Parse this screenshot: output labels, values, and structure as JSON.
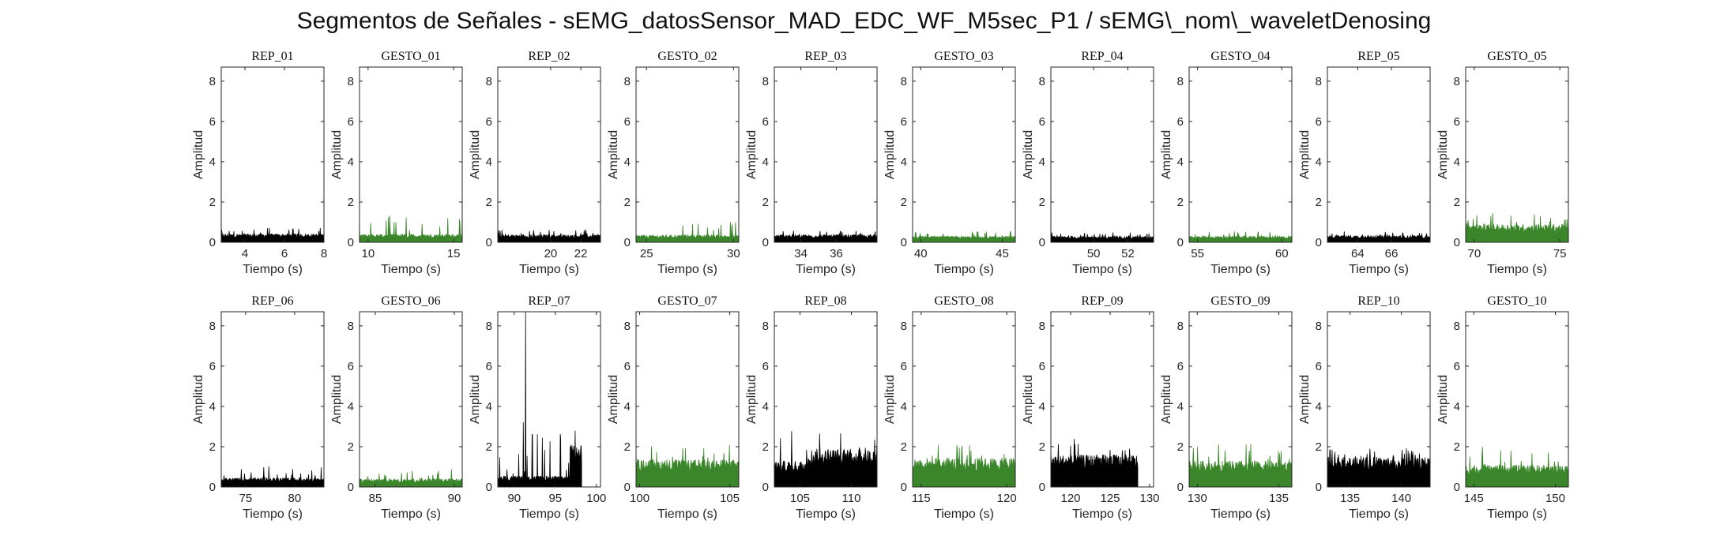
{
  "title": "Segmentos de Señales - sEMG_datosSensor_MAD_EDC_WF_M5sec_P1 / sEMG\\_nom\\_waveletDenosing",
  "colors": {
    "rep": "#000000",
    "gesto": "#3b862a",
    "axis": "#262626"
  },
  "chart_data": [
    {
      "type": "area",
      "title": "REP_01",
      "color": "rep",
      "xlabel": "Tiempo (s)",
      "ylabel": "Amplitud",
      "xlim": [
        2.8,
        8
      ],
      "ylim": [
        0,
        8.7
      ],
      "xticks": [
        4,
        6,
        8
      ],
      "yticks": [
        0,
        2,
        4,
        6,
        8
      ],
      "x_range": [
        2.8,
        8
      ],
      "level": 0.42,
      "peak": 0.72
    },
    {
      "type": "area",
      "title": "GESTO_01",
      "color": "gesto",
      "xlabel": "Tiempo (s)",
      "ylabel": "Amplitud",
      "xlim": [
        9.5,
        15.5
      ],
      "ylim": [
        0,
        8.7
      ],
      "xticks": [
        10,
        15
      ],
      "yticks": [
        0,
        2,
        4,
        6,
        8
      ],
      "x_range": [
        9.5,
        15.5
      ],
      "level": 0.4,
      "peak": 1.35
    },
    {
      "type": "area",
      "title": "REP_02",
      "color": "rep",
      "xlabel": "Tiempo (s)",
      "ylabel": "Amplitud",
      "xlim": [
        16.5,
        23.3
      ],
      "ylim": [
        0,
        8.7
      ],
      "xticks": [
        20,
        22
      ],
      "yticks": [
        0,
        2,
        4,
        6,
        8
      ],
      "x_range": [
        16.5,
        23.3
      ],
      "level": 0.38,
      "peak": 0.62
    },
    {
      "type": "area",
      "title": "GESTO_02",
      "color": "gesto",
      "xlabel": "Tiempo (s)",
      "ylabel": "Amplitud",
      "xlim": [
        24.4,
        30.3
      ],
      "ylim": [
        0,
        8.7
      ],
      "xticks": [
        25,
        30
      ],
      "yticks": [
        0,
        2,
        4,
        6,
        8
      ],
      "x_range": [
        24.4,
        30.3
      ],
      "level": 0.36,
      "peak": 1.05
    },
    {
      "type": "area",
      "title": "REP_03",
      "color": "rep",
      "xlabel": "Tiempo (s)",
      "ylabel": "Amplitud",
      "xlim": [
        32.5,
        38.3
      ],
      "ylim": [
        0,
        8.7
      ],
      "xticks": [
        34,
        36
      ],
      "yticks": [
        0,
        2,
        4,
        6,
        8
      ],
      "x_range": [
        32.5,
        38.3
      ],
      "level": 0.38,
      "peak": 0.6
    },
    {
      "type": "area",
      "title": "GESTO_03",
      "color": "gesto",
      "xlabel": "Tiempo (s)",
      "ylabel": "Amplitud",
      "xlim": [
        39.5,
        45.8
      ],
      "ylim": [
        0,
        8.7
      ],
      "xticks": [
        40,
        45
      ],
      "yticks": [
        0,
        2,
        4,
        6,
        8
      ],
      "x_range": [
        39.5,
        45.8
      ],
      "level": 0.3,
      "peak": 0.55
    },
    {
      "type": "area",
      "title": "REP_04",
      "color": "rep",
      "xlabel": "Tiempo (s)",
      "ylabel": "Amplitud",
      "xlim": [
        47.5,
        53.5
      ],
      "ylim": [
        0,
        8.7
      ],
      "xticks": [
        50,
        52
      ],
      "yticks": [
        0,
        2,
        4,
        6,
        8
      ],
      "x_range": [
        47.5,
        53.5
      ],
      "level": 0.3,
      "peak": 0.52
    },
    {
      "type": "area",
      "title": "GESTO_04",
      "color": "gesto",
      "xlabel": "Tiempo (s)",
      "ylabel": "Amplitud",
      "xlim": [
        54.5,
        60.6
      ],
      "ylim": [
        0,
        8.7
      ],
      "xticks": [
        55,
        60
      ],
      "yticks": [
        0,
        2,
        4,
        6,
        8
      ],
      "x_range": [
        54.5,
        60.6
      ],
      "level": 0.3,
      "peak": 0.55
    },
    {
      "type": "area",
      "title": "REP_05",
      "color": "rep",
      "xlabel": "Tiempo (s)",
      "ylabel": "Amplitud",
      "xlim": [
        62.2,
        68.3
      ],
      "ylim": [
        0,
        8.7
      ],
      "xticks": [
        64,
        66
      ],
      "yticks": [
        0,
        2,
        4,
        6,
        8
      ],
      "x_range": [
        62.2,
        68.3
      ],
      "level": 0.34,
      "peak": 0.55
    },
    {
      "type": "area",
      "title": "GESTO_05",
      "color": "gesto",
      "xlabel": "Tiempo (s)",
      "ylabel": "Amplitud",
      "xlim": [
        69.5,
        75.5
      ],
      "ylim": [
        0,
        8.7
      ],
      "xticks": [
        70,
        75
      ],
      "yticks": [
        0,
        2,
        4,
        6,
        8
      ],
      "x_range": [
        69.5,
        75.5
      ],
      "level": 0.9,
      "peak": 1.45
    },
    {
      "type": "area",
      "title": "REP_06",
      "color": "rep",
      "xlabel": "Tiempo (s)",
      "ylabel": "Amplitud",
      "xlim": [
        72.5,
        83
      ],
      "ylim": [
        0,
        8.7
      ],
      "xticks": [
        75,
        80
      ],
      "yticks": [
        0,
        2,
        4,
        6,
        8
      ],
      "x_range": [
        72.5,
        83
      ],
      "level": 0.45,
      "peak": 1.05
    },
    {
      "type": "area",
      "title": "GESTO_06",
      "color": "gesto",
      "xlabel": "Tiempo (s)",
      "ylabel": "Amplitud",
      "xlim": [
        84,
        90.5
      ],
      "ylim": [
        0,
        8.7
      ],
      "xticks": [
        85,
        90
      ],
      "yticks": [
        0,
        2,
        4,
        6,
        8
      ],
      "x_range": [
        84,
        90.5
      ],
      "level": 0.4,
      "peak": 0.9
    },
    {
      "type": "area",
      "title": "REP_07",
      "color": "rep",
      "xlabel": "Tiempo (s)",
      "ylabel": "Amplitud",
      "xlim": [
        88,
        100.5
      ],
      "ylim": [
        0,
        8.7
      ],
      "xticks": [
        90,
        95,
        100
      ],
      "yticks": [
        0,
        2,
        4,
        6,
        8
      ],
      "x_range": [
        88,
        98.2
      ],
      "level": 0.55,
      "peak": 2.8,
      "spikes": [
        [
          91.4,
          8.7
        ],
        [
          91.1,
          3.2
        ],
        [
          92.2,
          2.6
        ],
        [
          97.4,
          2.8
        ]
      ],
      "plateau": [
        96.8,
        98.2,
        2.1
      ]
    },
    {
      "type": "area",
      "title": "GESTO_07",
      "color": "gesto",
      "xlabel": "Tiempo (s)",
      "ylabel": "Amplitud",
      "xlim": [
        99.8,
        105.5
      ],
      "ylim": [
        0,
        8.7
      ],
      "xticks": [
        100,
        105
      ],
      "yticks": [
        0,
        2,
        4,
        6,
        8
      ],
      "x_range": [
        99.8,
        105.5
      ],
      "level": 1.35,
      "peak": 2.2
    },
    {
      "type": "area",
      "title": "REP_08",
      "color": "rep",
      "xlabel": "Tiempo (s)",
      "ylabel": "Amplitud",
      "xlim": [
        102.5,
        112.5
      ],
      "ylim": [
        0,
        8.7
      ],
      "xticks": [
        105,
        110
      ],
      "yticks": [
        0,
        2,
        4,
        6,
        8
      ],
      "x_range": [
        102.5,
        112.5
      ],
      "level": 1.9,
      "peak": 2.8,
      "step": [
        102.5,
        105.6,
        1.3
      ]
    },
    {
      "type": "area",
      "title": "GESTO_08",
      "color": "gesto",
      "xlabel": "Tiempo (s)",
      "ylabel": "Amplitud",
      "xlim": [
        114.5,
        120.5
      ],
      "ylim": [
        0,
        8.7
      ],
      "xticks": [
        115,
        120
      ],
      "yticks": [
        0,
        2,
        4,
        6,
        8
      ],
      "x_range": [
        114.5,
        120.5
      ],
      "level": 1.45,
      "peak": 2.1
    },
    {
      "type": "area",
      "title": "REP_09",
      "color": "rep",
      "xlabel": "Tiempo (s)",
      "ylabel": "Amplitud",
      "xlim": [
        117.5,
        130.5
      ],
      "ylim": [
        0,
        8.7
      ],
      "xticks": [
        120,
        125,
        130
      ],
      "yticks": [
        0,
        2,
        4,
        6,
        8
      ],
      "x_range": [
        117.5,
        128.5
      ],
      "level": 1.6,
      "peak": 2.4
    },
    {
      "type": "area",
      "title": "GESTO_09",
      "color": "gesto",
      "xlabel": "Tiempo (s)",
      "ylabel": "Amplitud",
      "xlim": [
        129.5,
        135.8
      ],
      "ylim": [
        0,
        8.7
      ],
      "xticks": [
        130,
        135
      ],
      "yticks": [
        0,
        2,
        4,
        6,
        8
      ],
      "x_range": [
        129.5,
        135.8
      ],
      "level": 1.3,
      "peak": 2.2
    },
    {
      "type": "area",
      "title": "REP_10",
      "color": "rep",
      "xlabel": "Tiempo (s)",
      "ylabel": "Amplitud",
      "xlim": [
        132.8,
        142.8
      ],
      "ylim": [
        0,
        8.7
      ],
      "xticks": [
        135,
        140
      ],
      "yticks": [
        0,
        2,
        4,
        6,
        8
      ],
      "x_range": [
        132.8,
        142.8
      ],
      "level": 1.5,
      "peak": 2.0
    },
    {
      "type": "area",
      "title": "GESTO_10",
      "color": "gesto",
      "xlabel": "Tiempo (s)",
      "ylabel": "Amplitud",
      "xlim": [
        144.5,
        150.8
      ],
      "ylim": [
        0,
        8.7
      ],
      "xticks": [
        145,
        150
      ],
      "yticks": [
        0,
        2,
        4,
        6,
        8
      ],
      "x_range": [
        144.5,
        150.8
      ],
      "level": 1.1,
      "peak": 2.0
    }
  ]
}
